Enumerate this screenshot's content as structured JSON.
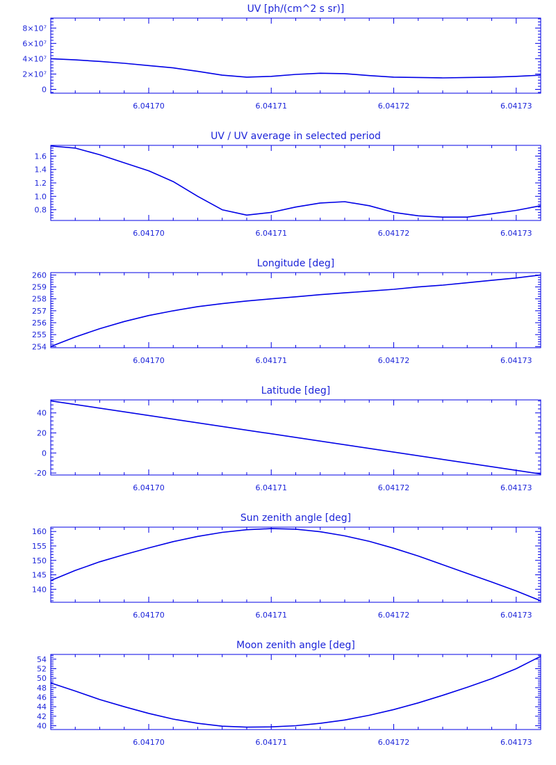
{
  "theme": {
    "line_color": "#0000e6",
    "text_color": "#1c24d9",
    "background": "#ffffff"
  },
  "chart_data": [
    {
      "type": "line",
      "title": "UV [ph/(cm^2 s sr)]",
      "xlim": [
        6.041692,
        6.041732
      ],
      "ylim": [
        -5000000,
        93000000
      ],
      "x_ticks": [
        {
          "value": 6.0417,
          "label": "6.04170"
        },
        {
          "value": 6.04171,
          "label": "6.04171"
        },
        {
          "value": 6.04172,
          "label": "6.04172"
        },
        {
          "value": 6.04173,
          "label": "6.04173"
        }
      ],
      "y_ticks": [
        {
          "value": 0,
          "label": "0"
        },
        {
          "value": 20000000,
          "label": "2×10⁷"
        },
        {
          "value": 40000000,
          "label": "4×10⁷"
        },
        {
          "value": 60000000,
          "label": "6×10⁷"
        },
        {
          "value": 80000000,
          "label": "8×10⁷"
        }
      ],
      "series": [
        {
          "x": [
            6.041692,
            6.041694,
            6.041696,
            6.041698,
            6.0417,
            6.041702,
            6.041704,
            6.041706,
            6.041708,
            6.04171,
            6.041712,
            6.041714,
            6.041716,
            6.041718,
            6.04172,
            6.041722,
            6.041724,
            6.041726,
            6.041728,
            6.04173,
            6.041732
          ],
          "y": [
            40000000,
            38500000,
            36500000,
            34000000,
            31000000,
            28000000,
            23500000,
            18500000,
            16000000,
            17000000,
            19500000,
            21000000,
            20500000,
            18000000,
            16000000,
            15500000,
            15000000,
            15500000,
            16000000,
            17000000,
            18500000
          ]
        }
      ]
    },
    {
      "type": "line",
      "title": "UV / UV average in selected period",
      "xlim": [
        6.041692,
        6.041732
      ],
      "ylim": [
        0.64,
        1.76
      ],
      "x_ticks": [
        {
          "value": 6.0417,
          "label": "6.04170"
        },
        {
          "value": 6.04171,
          "label": "6.04171"
        },
        {
          "value": 6.04172,
          "label": "6.04172"
        },
        {
          "value": 6.04173,
          "label": "6.04173"
        }
      ],
      "y_ticks": [
        {
          "value": 0.8,
          "label": "0.8"
        },
        {
          "value": 1.0,
          "label": "1.0"
        },
        {
          "value": 1.2,
          "label": "1.2"
        },
        {
          "value": 1.4,
          "label": "1.4"
        },
        {
          "value": 1.6,
          "label": "1.6"
        }
      ],
      "series": [
        {
          "x": [
            6.041692,
            6.041694,
            6.041696,
            6.041698,
            6.0417,
            6.041702,
            6.041704,
            6.041706,
            6.041708,
            6.04171,
            6.041712,
            6.041714,
            6.041716,
            6.041718,
            6.04172,
            6.041722,
            6.041724,
            6.041726,
            6.041728,
            6.04173,
            6.041732
          ],
          "y": [
            1.75,
            1.72,
            1.62,
            1.5,
            1.38,
            1.22,
            1.0,
            0.8,
            0.72,
            0.76,
            0.84,
            0.9,
            0.92,
            0.86,
            0.76,
            0.71,
            0.69,
            0.69,
            0.74,
            0.79,
            0.86
          ]
        }
      ]
    },
    {
      "type": "line",
      "title": "Longitude [deg]",
      "xlim": [
        6.041692,
        6.041732
      ],
      "ylim": [
        253.9,
        260.2
      ],
      "x_ticks": [
        {
          "value": 6.0417,
          "label": "6.04170"
        },
        {
          "value": 6.04171,
          "label": "6.04171"
        },
        {
          "value": 6.04172,
          "label": "6.04172"
        },
        {
          "value": 6.04173,
          "label": "6.04173"
        }
      ],
      "y_ticks": [
        {
          "value": 254,
          "label": "254"
        },
        {
          "value": 255,
          "label": "255"
        },
        {
          "value": 256,
          "label": "256"
        },
        {
          "value": 257,
          "label": "257"
        },
        {
          "value": 258,
          "label": "258"
        },
        {
          "value": 259,
          "label": "259"
        },
        {
          "value": 260,
          "label": "260"
        }
      ],
      "series": [
        {
          "x": [
            6.041692,
            6.041694,
            6.041696,
            6.041698,
            6.0417,
            6.041702,
            6.041704,
            6.041706,
            6.041708,
            6.04171,
            6.041712,
            6.041714,
            6.041716,
            6.041718,
            6.04172,
            6.041722,
            6.041724,
            6.041726,
            6.041728,
            6.04173,
            6.041732
          ],
          "y": [
            254,
            254.8,
            255.5,
            256.1,
            256.6,
            257.0,
            257.35,
            257.6,
            257.82,
            258.0,
            258.17,
            258.35,
            258.5,
            258.65,
            258.8,
            259.0,
            259.15,
            259.35,
            259.55,
            259.75,
            260.0
          ]
        }
      ]
    },
    {
      "type": "line",
      "title": "Latitude [deg]",
      "xlim": [
        6.041692,
        6.041732
      ],
      "ylim": [
        -22,
        53
      ],
      "x_ticks": [
        {
          "value": 6.0417,
          "label": "6.04170"
        },
        {
          "value": 6.04171,
          "label": "6.04171"
        },
        {
          "value": 6.04172,
          "label": "6.04172"
        },
        {
          "value": 6.04173,
          "label": "6.04173"
        }
      ],
      "y_ticks": [
        {
          "value": -20,
          "label": "-20"
        },
        {
          "value": 0,
          "label": "0"
        },
        {
          "value": 20,
          "label": "20"
        },
        {
          "value": 40,
          "label": "40"
        }
      ],
      "series": [
        {
          "x": [
            6.041692,
            6.041732
          ],
          "y": [
            52,
            -21
          ]
        }
      ]
    },
    {
      "type": "line",
      "title": "Sun zenith angle [deg]",
      "xlim": [
        6.041692,
        6.041732
      ],
      "ylim": [
        135.5,
        161.5
      ],
      "x_ticks": [
        {
          "value": 6.0417,
          "label": "6.04170"
        },
        {
          "value": 6.04171,
          "label": "6.04171"
        },
        {
          "value": 6.04172,
          "label": "6.04172"
        },
        {
          "value": 6.04173,
          "label": "6.04173"
        }
      ],
      "y_ticks": [
        {
          "value": 140,
          "label": "140"
        },
        {
          "value": 145,
          "label": "145"
        },
        {
          "value": 150,
          "label": "150"
        },
        {
          "value": 155,
          "label": "155"
        },
        {
          "value": 160,
          "label": "160"
        }
      ],
      "series": [
        {
          "x": [
            6.041692,
            6.041694,
            6.041696,
            6.041698,
            6.0417,
            6.041702,
            6.041704,
            6.041706,
            6.041708,
            6.04171,
            6.041712,
            6.041714,
            6.041716,
            6.041718,
            6.04172,
            6.041722,
            6.041724,
            6.041726,
            6.041728,
            6.04173,
            6.041732
          ],
          "y": [
            143,
            146.5,
            149.5,
            152.0,
            154.3,
            156.5,
            158.3,
            159.7,
            160.6,
            161.0,
            160.8,
            159.9,
            158.5,
            156.6,
            154.2,
            151.5,
            148.5,
            145.5,
            142.5,
            139.4,
            136
          ]
        }
      ]
    },
    {
      "type": "line",
      "title": "Moon zenith angle [deg]",
      "xlim": [
        6.041692,
        6.041732
      ],
      "ylim": [
        39.2,
        55
      ],
      "x_ticks": [
        {
          "value": 6.0417,
          "label": "6.04170"
        },
        {
          "value": 6.04171,
          "label": "6.04171"
        },
        {
          "value": 6.04172,
          "label": "6.04172"
        },
        {
          "value": 6.04173,
          "label": "6.04173"
        }
      ],
      "y_ticks": [
        {
          "value": 40,
          "label": "40"
        },
        {
          "value": 42,
          "label": "42"
        },
        {
          "value": 44,
          "label": "44"
        },
        {
          "value": 46,
          "label": "46"
        },
        {
          "value": 48,
          "label": "48"
        },
        {
          "value": 50,
          "label": "50"
        },
        {
          "value": 52,
          "label": "52"
        },
        {
          "value": 54,
          "label": "54"
        }
      ],
      "series": [
        {
          "x": [
            6.041692,
            6.041694,
            6.041696,
            6.041698,
            6.0417,
            6.041702,
            6.041704,
            6.041706,
            6.041708,
            6.04171,
            6.041712,
            6.041714,
            6.041716,
            6.041718,
            6.04172,
            6.041722,
            6.041724,
            6.041726,
            6.041728,
            6.04173,
            6.041732
          ],
          "y": [
            49,
            47.3,
            45.5,
            44.0,
            42.6,
            41.4,
            40.5,
            39.9,
            39.7,
            39.75,
            40.0,
            40.5,
            41.2,
            42.2,
            43.4,
            44.8,
            46.4,
            48.1,
            49.9,
            52.0,
            54.6
          ]
        }
      ]
    }
  ]
}
